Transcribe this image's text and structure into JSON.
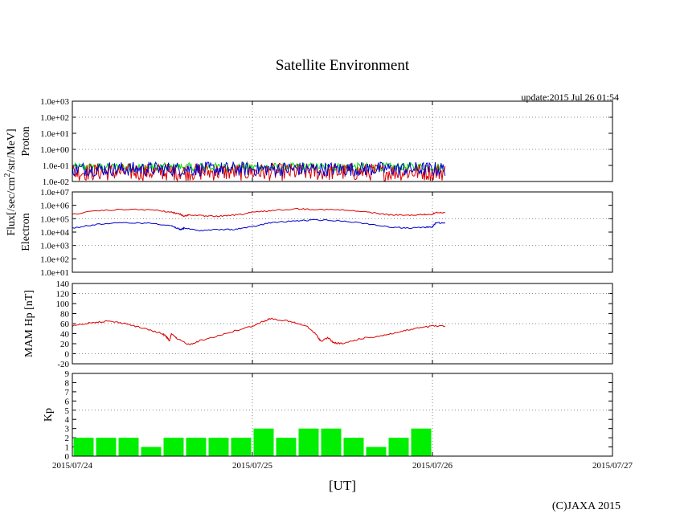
{
  "header": {
    "title": "Satellite Environment",
    "update": "update:2015 Jul 26 01:54"
  },
  "footer": {
    "xlabel": "[UT]",
    "copyright": "(C)JAXA 2015"
  },
  "flux_label": "Flux[/sec/cm²/str/MeV]",
  "colors": {
    "red": "#dd0000",
    "blue": "#0000cc",
    "green": "#00dd00",
    "grid": "#888888"
  },
  "chart_data": [
    {
      "type": "line",
      "panel": "proton",
      "ylabel": "Proton",
      "yscale": "log",
      "ylim": [
        0.01,
        1000
      ],
      "yticks": [
        "1.0e-02",
        "1.0e-01",
        "1.0e+00",
        "1.0e+01",
        "1.0e+02",
        "1.0e+03"
      ],
      "xlim": [
        0,
        3
      ],
      "xticks": [
        "2015/07/24",
        "2015/07/25",
        "2015/07/26",
        "2015/07/27"
      ],
      "noise": true,
      "series": [
        {
          "name": "green",
          "color": "#00dd00",
          "x": [
            0,
            0.5,
            1.0,
            1.5,
            2.07
          ],
          "y": [
            0.09,
            0.1,
            0.1,
            0.09,
            0.1
          ]
        },
        {
          "name": "red",
          "color": "#dd0000",
          "x": [
            0,
            0.5,
            1.0,
            1.5,
            2.07
          ],
          "y": [
            0.03,
            0.03,
            0.03,
            0.03,
            0.03
          ]
        },
        {
          "name": "blue",
          "color": "#0000cc",
          "x": [
            0,
            0.5,
            1.0,
            1.5,
            2.07
          ],
          "y": [
            0.06,
            0.06,
            0.06,
            0.06,
            0.06
          ]
        }
      ]
    },
    {
      "type": "line",
      "panel": "electron",
      "ylabel": "Electron",
      "yscale": "log",
      "ylim": [
        10,
        10000000
      ],
      "yticks": [
        "1.0e+01",
        "1.0e+02",
        "1.0e+03",
        "1.0e+04",
        "1.0e+05",
        "1.0e+06",
        "1.0e+07"
      ],
      "xlim": [
        0,
        3
      ],
      "xticks": [
        "2015/07/24",
        "2015/07/25",
        "2015/07/26",
        "2015/07/27"
      ],
      "series": [
        {
          "name": "red",
          "color": "#dd0000",
          "x": [
            0,
            0.15,
            0.3,
            0.45,
            0.55,
            0.6,
            0.62,
            0.65,
            0.75,
            0.85,
            0.95,
            1.0,
            1.1,
            1.25,
            1.35,
            1.5,
            1.65,
            1.75,
            1.85,
            1.95,
            2.0,
            2.02,
            2.07
          ],
          "y": [
            220000,
            400000,
            500000,
            450000,
            300000,
            220000,
            150000,
            200000,
            150000,
            160000,
            220000,
            300000,
            400000,
            550000,
            500000,
            450000,
            300000,
            200000,
            180000,
            200000,
            220000,
            300000,
            280000
          ]
        },
        {
          "name": "blue",
          "color": "#0000cc",
          "x": [
            0,
            0.15,
            0.3,
            0.45,
            0.55,
            0.58,
            0.6,
            0.62,
            0.7,
            0.8,
            0.9,
            1.0,
            1.1,
            1.25,
            1.35,
            1.5,
            1.65,
            1.75,
            1.85,
            1.95,
            2.0,
            2.02,
            2.07
          ],
          "y": [
            20000,
            40000,
            50000,
            45000,
            30000,
            20000,
            15000,
            20000,
            13000,
            15000,
            16000,
            25000,
            50000,
            70000,
            80000,
            70000,
            40000,
            25000,
            20000,
            22000,
            25000,
            50000,
            45000
          ]
        }
      ]
    },
    {
      "type": "line",
      "panel": "mam",
      "ylabel": "MAM Hp [nT]",
      "ylim": [
        -20,
        140
      ],
      "yticks": [
        "-20",
        "0",
        "20",
        "40",
        "60",
        "80",
        "100",
        "120",
        "140"
      ],
      "xlim": [
        0,
        3
      ],
      "xticks": [
        "2015/07/24",
        "2015/07/25",
        "2015/07/26",
        "2015/07/27"
      ],
      "series": [
        {
          "name": "Hp",
          "color": "#dd0000",
          "x": [
            0,
            0.1,
            0.2,
            0.3,
            0.4,
            0.5,
            0.52,
            0.54,
            0.55,
            0.58,
            0.65,
            0.7,
            0.8,
            0.9,
            1.0,
            1.05,
            1.1,
            1.2,
            1.3,
            1.35,
            1.38,
            1.42,
            1.45,
            1.5,
            1.6,
            1.7,
            1.8,
            1.9,
            2.0,
            2.07
          ],
          "y": [
            55,
            62,
            65,
            60,
            50,
            40,
            35,
            25,
            40,
            30,
            18,
            25,
            35,
            45,
            55,
            63,
            70,
            65,
            55,
            40,
            25,
            32,
            22,
            20,
            30,
            35,
            42,
            50,
            55,
            55
          ]
        }
      ]
    },
    {
      "type": "bar",
      "panel": "kp",
      "ylabel": "Kp",
      "ylim": [
        0,
        9
      ],
      "yticks": [
        "0",
        "1",
        "2",
        "3",
        "4",
        "5",
        "6",
        "7",
        "8",
        "9"
      ],
      "xlim": [
        0,
        3
      ],
      "xticks": [
        "2015/07/24",
        "2015/07/25",
        "2015/07/26",
        "2015/07/27"
      ],
      "color": "#00ee00",
      "values": [
        2,
        2,
        2,
        1,
        2,
        2,
        2,
        2,
        3,
        2,
        3,
        3,
        2,
        1,
        2,
        3
      ]
    }
  ]
}
